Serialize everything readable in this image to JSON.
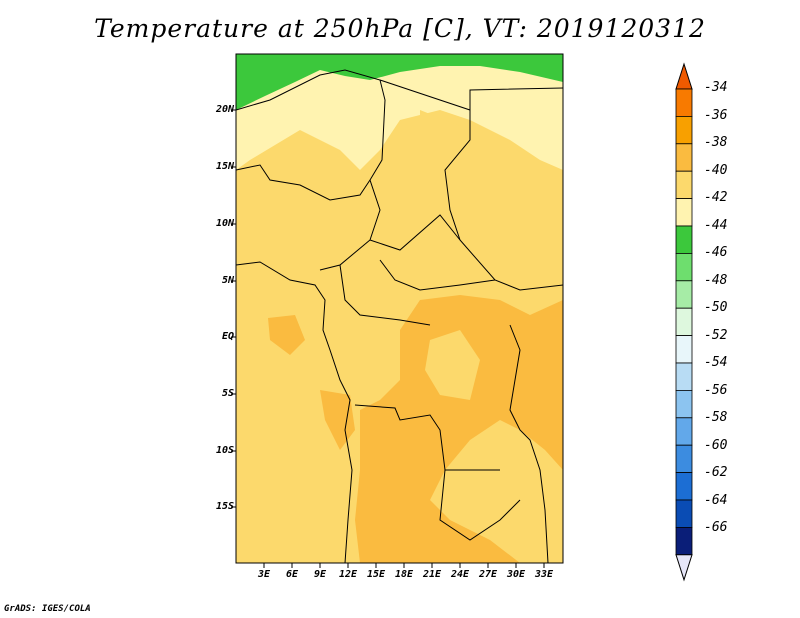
{
  "title": "Temperature at 250hPa [C], VT: 2019120312",
  "credit": "GrADS: IGES/COLA",
  "map": {
    "lat_labels": [
      "20N",
      "15N",
      "10N",
      "5N",
      "EQ",
      "5S",
      "10S",
      "15S"
    ],
    "lon_labels": [
      "3E",
      "6E",
      "9E",
      "12E",
      "15E",
      "18E",
      "21E",
      "24E",
      "27E",
      "30E",
      "33E"
    ]
  },
  "colorbar": {
    "labels": [
      "-34",
      "-36",
      "-38",
      "-40",
      "-42",
      "-44",
      "-46",
      "-48",
      "-50",
      "-52",
      "-54",
      "-56",
      "-58",
      "-60",
      "-62",
      "-64",
      "-66"
    ],
    "colors": [
      "#f05a00",
      "#f87a00",
      "#f8a000",
      "#fabb40",
      "#fcd96c",
      "#fff3b0",
      "#3cc83c",
      "#6ede6e",
      "#a6eca6",
      "#def8de",
      "#e8f6fa",
      "#b8dcf4",
      "#8cc4f0",
      "#62a8ea",
      "#3c8ce0",
      "#1c6ed4",
      "#0a4cb4",
      "#0a1e78",
      "#e6e6f8"
    ]
  }
}
